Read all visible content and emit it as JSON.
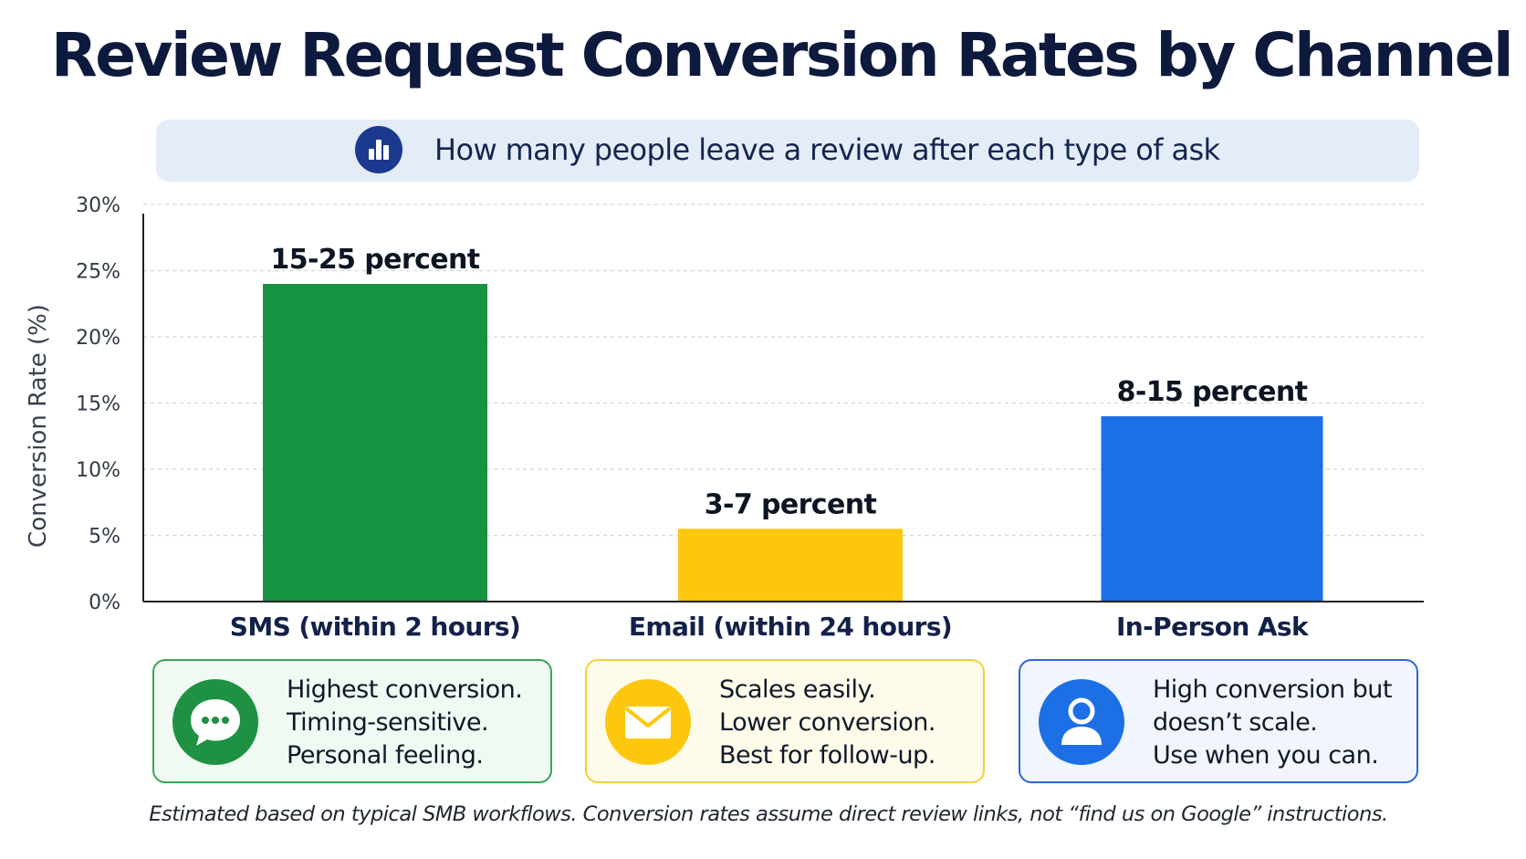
{
  "title": "Review Request Conversion Rates by Channel",
  "subtitle": "How many people leave a review after each type of ask",
  "subtitle_icon": "bar-chart-icon",
  "chart_data": {
    "type": "bar",
    "categories": [
      "SMS (within 2 hours)",
      "Email (within 24 hours)",
      "In-Person Ask"
    ],
    "values": [
      24,
      5.5,
      14
    ],
    "ranges": [
      [
        15,
        25
      ],
      [
        3,
        7
      ],
      [
        8,
        15
      ]
    ],
    "data_labels": [
      "15-25 percent",
      "3-7 percent",
      "8-15 percent"
    ],
    "colors": [
      "#169340",
      "#fdc70f",
      "#1c6fe4"
    ],
    "ylabel": "Conversion Rate (%)",
    "ylim": [
      0,
      30
    ],
    "yticks": [
      0,
      5,
      10,
      15,
      20,
      25,
      30
    ],
    "ytick_labels": [
      "0%",
      "5%",
      "10%",
      "15%",
      "20%",
      "25%",
      "30%"
    ],
    "grid": true
  },
  "cards": [
    {
      "icon": "chat-bubble-icon",
      "color": "#1e9143",
      "lines": [
        "Highest conversion.",
        "Timing-sensitive.",
        "Personal feeling."
      ]
    },
    {
      "icon": "envelope-icon",
      "color": "#fdc70f",
      "lines": [
        "Scales easily.",
        "Lower conversion.",
        "Best for follow-up."
      ]
    },
    {
      "icon": "person-icon",
      "color": "#1c6fe4",
      "lines": [
        "High conversion but",
        "doesn’t scale.",
        "Use when you can."
      ]
    }
  ],
  "footnote": "Estimated based on typical SMB workflows. Conversion rates assume direct review links, not “find us on Google” instructions."
}
